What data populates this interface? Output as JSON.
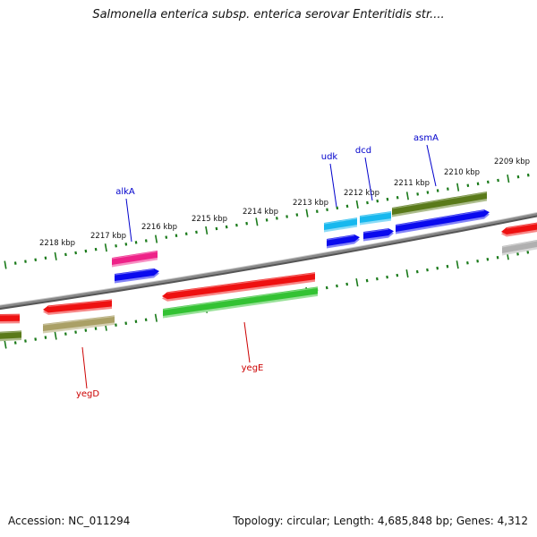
{
  "title": "Salmonella enterica subsp. enterica serovar Enteritidis str....",
  "footer": {
    "accession": "Accession: NC_011294",
    "stats": "Topology: circular; Length: 4,685,848 bp; Genes: 4,312"
  },
  "scale": {
    "unit": "kbp",
    "ticks": [
      "2218 kbp",
      "2217 kbp",
      "2216 kbp",
      "2215 kbp",
      "2214 kbp",
      "2213 kbp",
      "2212 kbp",
      "2211 kbp",
      "2210 kbp",
      "2209 kbp"
    ]
  },
  "gene_labels": [
    {
      "name": "alkA",
      "strand": "forward",
      "color": "#0000cc"
    },
    {
      "name": "udk",
      "strand": "forward",
      "color": "#0000cc"
    },
    {
      "name": "dcd",
      "strand": "forward",
      "color": "#0000cc"
    },
    {
      "name": "asmA",
      "strand": "forward",
      "color": "#0000cc"
    },
    {
      "name": "yegD",
      "strand": "reverse",
      "color": "#cc0000"
    },
    {
      "name": "yegE",
      "strand": "reverse",
      "color": "#cc0000"
    }
  ],
  "colors": {
    "backbone": "#888888",
    "scale_ticks": "#1a7a1a",
    "forward_label": "#0000cc",
    "reverse_label": "#cc0000",
    "cds_red": "#ee1111",
    "cds_blue": "#0a0aee",
    "cds_cyan": "#18b8ee",
    "cds_pink": "#ee2288",
    "cds_olive": "#5a7a1a",
    "cds_green": "#33c233",
    "cds_tan": "#aaa066",
    "cds_gray": "#b0b0b0"
  }
}
